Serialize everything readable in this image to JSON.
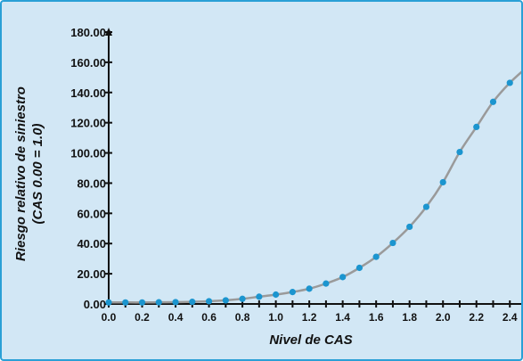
{
  "chart_data": {
    "type": "line",
    "title": "",
    "xlabel": "Nivel de CAS",
    "ylabel_line1": "Riesgo relativo de siniestro",
    "ylabel_line2": "(CAS 0.00 = 1.0)",
    "xlim": [
      0,
      2.5
    ],
    "ylim": [
      0,
      180
    ],
    "xticks": [
      "0.0",
      "0.2",
      "0.4",
      "0.6",
      "0.8",
      "1.0",
      "1.2",
      "1.4",
      "1.6",
      "1.8",
      "2.0",
      "2.2",
      "2.4"
    ],
    "yticks": [
      "0.00",
      "20.00",
      "40.00",
      "60.00",
      "80.00",
      "100.00",
      "120.00",
      "140.00",
      "160.00",
      "180.00"
    ],
    "grid": false,
    "legend": "none",
    "series": [
      {
        "x": [
          0.0,
          0.1,
          0.2,
          0.3,
          0.4,
          0.5,
          0.6,
          0.7,
          0.8,
          0.9,
          1.0,
          1.1,
          1.2,
          1.3,
          1.4,
          1.5,
          1.6,
          1.7,
          1.8,
          1.9,
          2.0,
          2.1,
          2.2,
          2.3,
          2.4,
          2.5
        ],
        "y": [
          1.0,
          1.0,
          1.0,
          1.1,
          1.2,
          1.4,
          1.8,
          2.4,
          3.4,
          4.8,
          6.2,
          7.9,
          10.1,
          13.5,
          17.8,
          23.9,
          31.2,
          40.4,
          51.1,
          64.3,
          80.6,
          100.6,
          117.2,
          133.8,
          146.4,
          156.5
        ]
      }
    ],
    "colors": {
      "line": "#9a9a9a",
      "marker": "#1b95cf",
      "axis": "#111111",
      "background": "#d2e7f5",
      "border": "#2aa0d6"
    }
  }
}
